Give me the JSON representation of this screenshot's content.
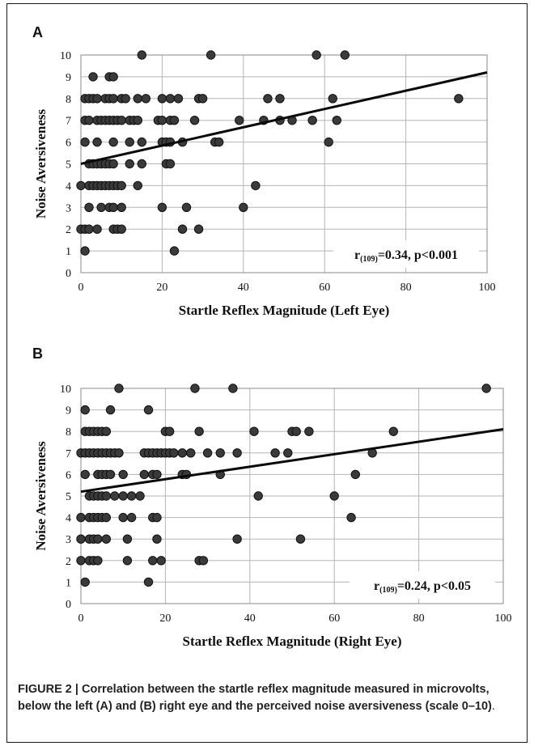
{
  "panels": [
    {
      "label": "A",
      "annotation": "r(109)=0.34, p<0.001",
      "annotation_sub": "(109)",
      "annotation_rest": "=0.34, p<0.001",
      "chart_data": {
        "type": "scatter",
        "xlabel": "Startle Reflex Magnitude (Left Eye)",
        "ylabel": "Noise Aversiveness",
        "xlim": [
          0,
          100
        ],
        "ylim": [
          0,
          10
        ],
        "xticks": [
          0,
          20,
          40,
          60,
          80,
          100
        ],
        "yticks": [
          0,
          1,
          2,
          3,
          4,
          5,
          6,
          7,
          8,
          9,
          10
        ],
        "grid": true,
        "points": [
          [
            15,
            10
          ],
          [
            32,
            10
          ],
          [
            58,
            10
          ],
          [
            65,
            10
          ],
          [
            3,
            9
          ],
          [
            7,
            9
          ],
          [
            8,
            9
          ],
          [
            1,
            8
          ],
          [
            2,
            8
          ],
          [
            3,
            8
          ],
          [
            4,
            8
          ],
          [
            6,
            8
          ],
          [
            7,
            8
          ],
          [
            8,
            8
          ],
          [
            10,
            8
          ],
          [
            11,
            8
          ],
          [
            14,
            8
          ],
          [
            16,
            8
          ],
          [
            20,
            8
          ],
          [
            22,
            8
          ],
          [
            24,
            8
          ],
          [
            29,
            8
          ],
          [
            30,
            8
          ],
          [
            46,
            8
          ],
          [
            49,
            8
          ],
          [
            62,
            8
          ],
          [
            93,
            8
          ],
          [
            1,
            7
          ],
          [
            2,
            7
          ],
          [
            4,
            7
          ],
          [
            5,
            7
          ],
          [
            6,
            7
          ],
          [
            7,
            7
          ],
          [
            8,
            7
          ],
          [
            9,
            7
          ],
          [
            10,
            7
          ],
          [
            12,
            7
          ],
          [
            13,
            7
          ],
          [
            14,
            7
          ],
          [
            19,
            7
          ],
          [
            20,
            7
          ],
          [
            22,
            7
          ],
          [
            23,
            7
          ],
          [
            28,
            7
          ],
          [
            39,
            7
          ],
          [
            45,
            7
          ],
          [
            49,
            7
          ],
          [
            52,
            7
          ],
          [
            57,
            7
          ],
          [
            63,
            7
          ],
          [
            1,
            6
          ],
          [
            4,
            6
          ],
          [
            8,
            6
          ],
          [
            12,
            6
          ],
          [
            15,
            6
          ],
          [
            20,
            6
          ],
          [
            21,
            6
          ],
          [
            22,
            6
          ],
          [
            25,
            6
          ],
          [
            33,
            6
          ],
          [
            34,
            6
          ],
          [
            61,
            6
          ],
          [
            2,
            5
          ],
          [
            3,
            5
          ],
          [
            4,
            5
          ],
          [
            5,
            5
          ],
          [
            6,
            5
          ],
          [
            7,
            5
          ],
          [
            8,
            5
          ],
          [
            12,
            5
          ],
          [
            15,
            5
          ],
          [
            21,
            5
          ],
          [
            22,
            5
          ],
          [
            0,
            4
          ],
          [
            2,
            4
          ],
          [
            3,
            4
          ],
          [
            4,
            4
          ],
          [
            5,
            4
          ],
          [
            6,
            4
          ],
          [
            7,
            4
          ],
          [
            8,
            4
          ],
          [
            9,
            4
          ],
          [
            10,
            4
          ],
          [
            14,
            4
          ],
          [
            43,
            4
          ],
          [
            2,
            3
          ],
          [
            5,
            3
          ],
          [
            7,
            3
          ],
          [
            8,
            3
          ],
          [
            10,
            3
          ],
          [
            20,
            3
          ],
          [
            26,
            3
          ],
          [
            40,
            3
          ],
          [
            0,
            2
          ],
          [
            1,
            2
          ],
          [
            2,
            2
          ],
          [
            4,
            2
          ],
          [
            8,
            2
          ],
          [
            9,
            2
          ],
          [
            10,
            2
          ],
          [
            25,
            2
          ],
          [
            29,
            2
          ],
          [
            1,
            1
          ],
          [
            23,
            1
          ]
        ],
        "trendline": [
          [
            0,
            5.0
          ],
          [
            100,
            9.2
          ]
        ]
      }
    },
    {
      "label": "B",
      "annotation": "r(109)=0.24, p<0.05",
      "annotation_sub": "(109)",
      "annotation_rest": "=0.24, p<0.05",
      "chart_data": {
        "type": "scatter",
        "xlabel": "Startle Reflex Magnitude (Right Eye)",
        "ylabel": "Noise Aversiveness",
        "xlim": [
          0,
          100
        ],
        "ylim": [
          0,
          10
        ],
        "xticks": [
          0,
          20,
          40,
          60,
          80,
          100
        ],
        "yticks": [
          0,
          1,
          2,
          3,
          4,
          5,
          6,
          7,
          8,
          9,
          10
        ],
        "grid": true,
        "points": [
          [
            9,
            10
          ],
          [
            27,
            10
          ],
          [
            36,
            10
          ],
          [
            96,
            10
          ],
          [
            1,
            9
          ],
          [
            7,
            9
          ],
          [
            16,
            9
          ],
          [
            1,
            8
          ],
          [
            2,
            8
          ],
          [
            3,
            8
          ],
          [
            4,
            8
          ],
          [
            5,
            8
          ],
          [
            6,
            8
          ],
          [
            20,
            8
          ],
          [
            21,
            8
          ],
          [
            28,
            8
          ],
          [
            41,
            8
          ],
          [
            50,
            8
          ],
          [
            51,
            8
          ],
          [
            54,
            8
          ],
          [
            74,
            8
          ],
          [
            0,
            7
          ],
          [
            1,
            7
          ],
          [
            2,
            7
          ],
          [
            3,
            7
          ],
          [
            4,
            7
          ],
          [
            5,
            7
          ],
          [
            6,
            7
          ],
          [
            7,
            7
          ],
          [
            8,
            7
          ],
          [
            9,
            7
          ],
          [
            15,
            7
          ],
          [
            16,
            7
          ],
          [
            17,
            7
          ],
          [
            18,
            7
          ],
          [
            19,
            7
          ],
          [
            20,
            7
          ],
          [
            21,
            7
          ],
          [
            22,
            7
          ],
          [
            24,
            7
          ],
          [
            26,
            7
          ],
          [
            30,
            7
          ],
          [
            33,
            7
          ],
          [
            37,
            7
          ],
          [
            46,
            7
          ],
          [
            49,
            7
          ],
          [
            69,
            7
          ],
          [
            1,
            6
          ],
          [
            4,
            6
          ],
          [
            5,
            6
          ],
          [
            6,
            6
          ],
          [
            7,
            6
          ],
          [
            10,
            6
          ],
          [
            15,
            6
          ],
          [
            17,
            6
          ],
          [
            18,
            6
          ],
          [
            24,
            6
          ],
          [
            25,
            6
          ],
          [
            33,
            6
          ],
          [
            65,
            6
          ],
          [
            2,
            5
          ],
          [
            3,
            5
          ],
          [
            4,
            5
          ],
          [
            5,
            5
          ],
          [
            6,
            5
          ],
          [
            8,
            5
          ],
          [
            10,
            5
          ],
          [
            12,
            5
          ],
          [
            14,
            5
          ],
          [
            42,
            5
          ],
          [
            60,
            5
          ],
          [
            0,
            4
          ],
          [
            2,
            4
          ],
          [
            3,
            4
          ],
          [
            4,
            4
          ],
          [
            5,
            4
          ],
          [
            6,
            4
          ],
          [
            10,
            4
          ],
          [
            12,
            4
          ],
          [
            17,
            4
          ],
          [
            18,
            4
          ],
          [
            64,
            4
          ],
          [
            0,
            3
          ],
          [
            2,
            3
          ],
          [
            3,
            3
          ],
          [
            4,
            3
          ],
          [
            6,
            3
          ],
          [
            11,
            3
          ],
          [
            18,
            3
          ],
          [
            37,
            3
          ],
          [
            52,
            3
          ],
          [
            0,
            2
          ],
          [
            2,
            2
          ],
          [
            3,
            2
          ],
          [
            4,
            2
          ],
          [
            11,
            2
          ],
          [
            17,
            2
          ],
          [
            19,
            2
          ],
          [
            28,
            2
          ],
          [
            29,
            2
          ],
          [
            1,
            1
          ],
          [
            16,
            1
          ]
        ],
        "trendline": [
          [
            0,
            5.2
          ],
          [
            100,
            8.1
          ]
        ]
      }
    }
  ],
  "caption": {
    "lead": "FIGURE 2 | Correlation between the startle reflex magnitude measured in microvolts, below the left (A) and (B) right eye and the perceived noise aversiveness (scale 0–10)",
    "tail": "."
  },
  "colors": {
    "point_fill": "#3a3a3a",
    "point_stroke": "#111111",
    "grid": "#b5b5b5",
    "axis": "#8a8a8a",
    "trend": "#0a0a0a",
    "text": "#111111"
  }
}
